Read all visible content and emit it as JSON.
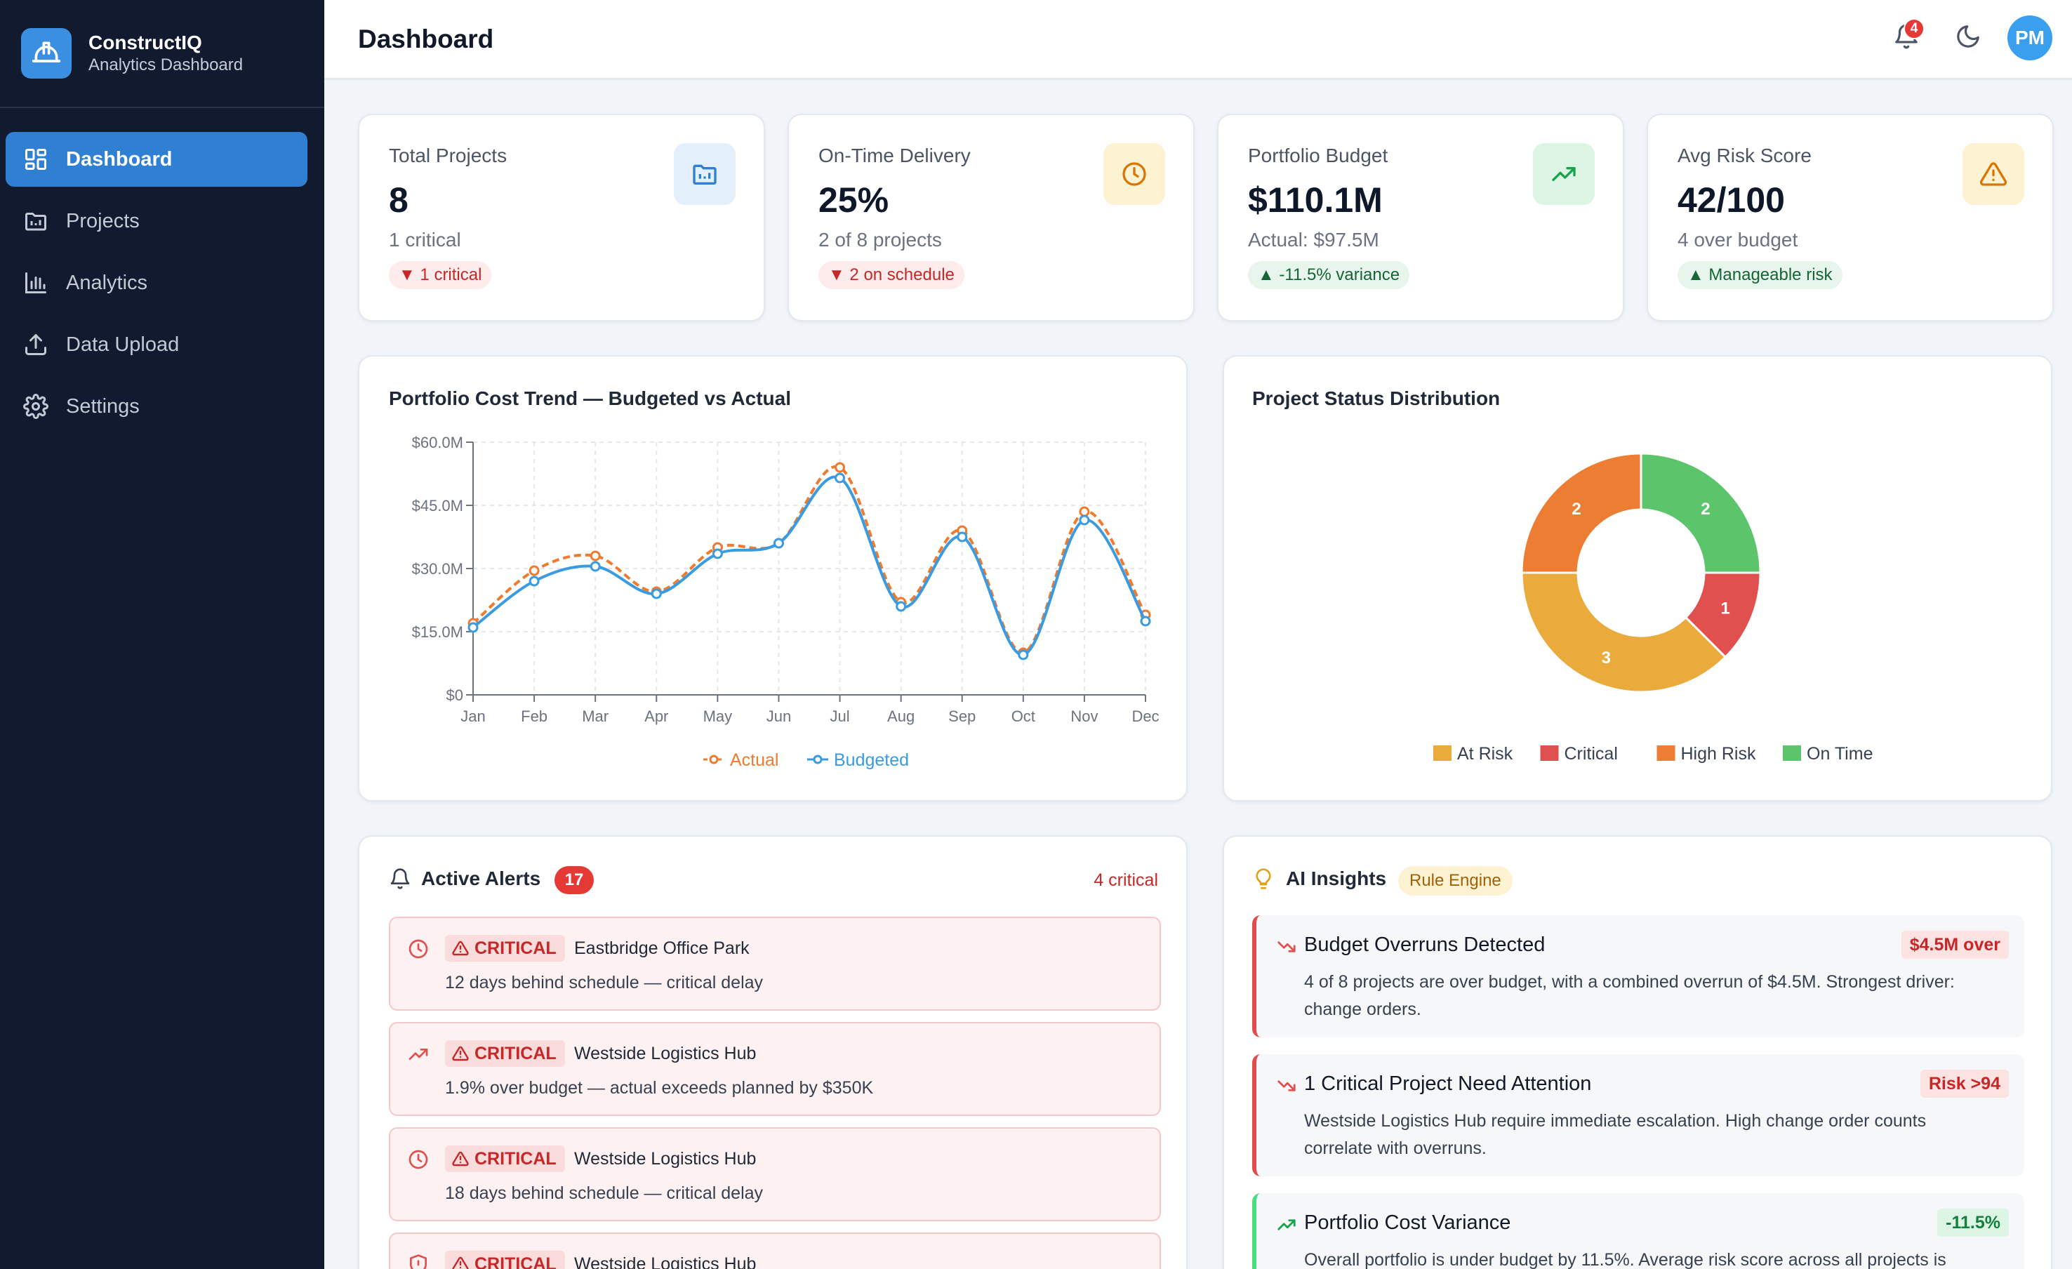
{
  "brand": {
    "name": "ConstructIQ",
    "subtitle": "Analytics Dashboard"
  },
  "nav": [
    {
      "label": "Dashboard",
      "icon": "grid-icon",
      "active": true
    },
    {
      "label": "Projects",
      "icon": "folder-chart-icon"
    },
    {
      "label": "Analytics",
      "icon": "bar-chart-icon"
    },
    {
      "label": "Data Upload",
      "icon": "upload-icon"
    },
    {
      "label": "Settings",
      "icon": "gear-icon"
    }
  ],
  "header": {
    "title": "Dashboard",
    "notification_count": "4",
    "avatar_initials": "PM"
  },
  "kpis": [
    {
      "label": "Total Projects",
      "value": "8",
      "sub": "1 critical",
      "badge": "▼ 1 critical",
      "badge_type": "neg",
      "icon": "folder-chart-icon",
      "icon_bg": "#e3f0fc",
      "icon_color": "#2f7fd2"
    },
    {
      "label": "On-Time Delivery",
      "value": "25%",
      "sub": "2 of 8 projects",
      "badge": "▼ 2 on schedule",
      "badge_type": "neg",
      "icon": "clock-icon",
      "icon_bg": "#fdf3d3",
      "icon_color": "#d97706"
    },
    {
      "label": "Portfolio Budget",
      "value": "$110.1M",
      "sub": "Actual: $97.5M",
      "badge": "▲ -11.5% variance",
      "badge_type": "pos",
      "icon": "trending-up-icon",
      "icon_bg": "#dcf5e4",
      "icon_color": "#16a34a"
    },
    {
      "label": "Avg Risk Score",
      "value": "42/100",
      "sub": "4 over budget",
      "badge": "▲ Manageable risk",
      "badge_type": "pos",
      "icon": "warning-icon",
      "icon_bg": "#fdf3d3",
      "icon_color": "#d97706"
    }
  ],
  "cost_trend": {
    "title": "Portfolio Cost Trend — Budgeted vs Actual",
    "chart_data": {
      "type": "line",
      "x": [
        "Jan",
        "Feb",
        "Mar",
        "Apr",
        "May",
        "Jun",
        "Jul",
        "Aug",
        "Sep",
        "Oct",
        "Nov",
        "Dec"
      ],
      "ylim": [
        0,
        60
      ],
      "yticks": [
        "$0",
        "$15.0M",
        "$30.0M",
        "$45.0M",
        "$60.0M"
      ],
      "series": [
        {
          "name": "Actual",
          "color": "#f07a2e",
          "dashed": true,
          "values": [
            17,
            29.5,
            33,
            24.5,
            35,
            36,
            54,
            22,
            39,
            10,
            43.5,
            19
          ]
        },
        {
          "name": "Budgeted",
          "color": "#3a9be0",
          "dashed": false,
          "values": [
            16,
            27,
            30.5,
            24,
            33.5,
            36,
            51.5,
            21,
            37.5,
            9.5,
            41.5,
            17.5
          ]
        }
      ],
      "grid": true,
      "legend": "bottom"
    }
  },
  "status_dist": {
    "title": "Project Status Distribution",
    "chart_data": {
      "type": "pie",
      "donut": true,
      "slices": [
        {
          "label": "On Time",
          "value": 2,
          "color": "#5cc46a"
        },
        {
          "label": "Critical",
          "value": 1,
          "color": "#e0504e"
        },
        {
          "label": "At Risk",
          "value": 3,
          "color": "#ebaa3c"
        },
        {
          "label": "High Risk",
          "value": 2,
          "color": "#ec7d32"
        }
      ],
      "legend_order": [
        "At Risk",
        "Critical",
        "High Risk",
        "On Time"
      ],
      "legend": "bottom"
    }
  },
  "alerts": {
    "title": "Active Alerts",
    "count": "17",
    "critical_label": "4 critical",
    "items": [
      {
        "icon": "clock-icon",
        "tag": "CRITICAL",
        "name": "Eastbridge Office Park",
        "desc": "12 days behind schedule — critical delay"
      },
      {
        "icon": "trending-up-icon",
        "tag": "CRITICAL",
        "name": "Westside Logistics Hub",
        "desc": "1.9% over budget — actual exceeds planned by $350K"
      },
      {
        "icon": "clock-icon",
        "tag": "CRITICAL",
        "name": "Westside Logistics Hub",
        "desc": "18 days behind schedule — critical delay"
      },
      {
        "icon": "shield-icon",
        "tag": "CRITICAL",
        "name": "Westside Logistics Hub",
        "desc": ""
      }
    ]
  },
  "insights": {
    "title": "AI Insights",
    "engine_tag": "Rule Engine",
    "items": [
      {
        "title": "Budget Overruns Detected",
        "tag": "$4.5M over",
        "tone": "red",
        "icon": "trending-down-icon",
        "body": "4 of 8 projects are over budget, with a combined overrun of $4.5M. Strongest driver: change orders."
      },
      {
        "title": "1 Critical Project Need Attention",
        "tag": "Risk >94",
        "tone": "red",
        "icon": "trending-down-icon",
        "body": "Westside Logistics Hub require immediate escalation. High change order counts correlate with overruns."
      },
      {
        "title": "Portfolio Cost Variance",
        "tag": "-11.5%",
        "tone": "green",
        "icon": "trending-up-icon",
        "body": "Overall portfolio is under budget by 11.5%. Average risk score across all projects is"
      }
    ]
  }
}
